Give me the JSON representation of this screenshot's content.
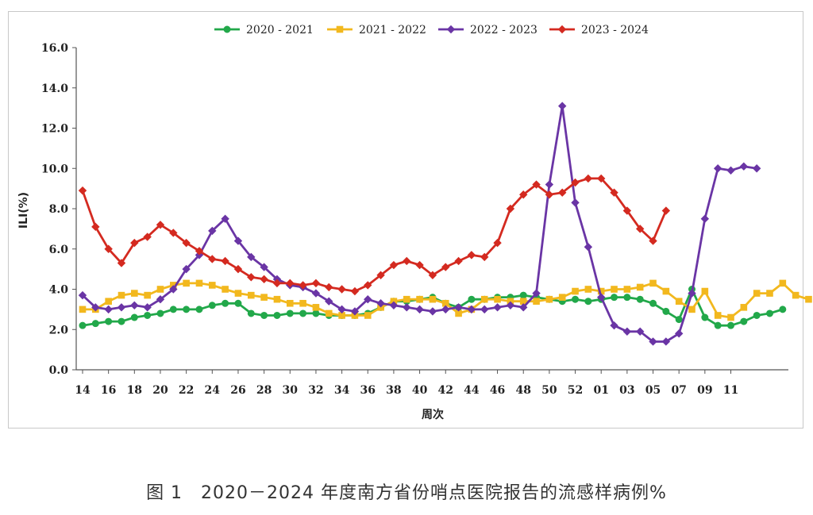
{
  "caption": "图 1　2020－2024 年度南方省份哨点医院报告的流感样病例%",
  "chart_data": {
    "type": "line",
    "title": "",
    "xlabel": "周次",
    "ylabel": "ILI(%)",
    "ylim": [
      0,
      16
    ],
    "yticks": [
      "0.0",
      "2.0",
      "4.0",
      "6.0",
      "8.0",
      "10.0",
      "12.0",
      "14.0",
      "16.0"
    ],
    "x_tick_labels": [
      "14",
      "16",
      "18",
      "20",
      "22",
      "24",
      "26",
      "28",
      "30",
      "32",
      "34",
      "36",
      "38",
      "40",
      "42",
      "44",
      "46",
      "48",
      "50",
      "52",
      "01",
      "03",
      "05",
      "07",
      "09",
      "11"
    ],
    "legend_position": "top",
    "series": [
      {
        "name": "2020 - 2021",
        "color": "#22a84a",
        "marker": "circle",
        "values": [
          2.2,
          2.3,
          2.4,
          2.4,
          2.6,
          2.7,
          2.8,
          3.0,
          3.0,
          3.0,
          3.2,
          3.3,
          3.3,
          2.8,
          2.7,
          2.7,
          2.8,
          2.8,
          2.8,
          2.7,
          2.7,
          2.7,
          2.8,
          3.1,
          3.4,
          3.4,
          3.5,
          3.6,
          3.3,
          3.1,
          3.5,
          3.5,
          3.6,
          3.6,
          3.7,
          3.6,
          3.5,
          3.4,
          3.5,
          3.4,
          3.5,
          3.6,
          3.6,
          3.5,
          3.3,
          2.9,
          2.5,
          4.0,
          2.6,
          2.2,
          2.2,
          2.4,
          2.7,
          2.8,
          3.0
        ]
      },
      {
        "name": "2021 - 2022",
        "color": "#f2b81e",
        "marker": "square",
        "values": [
          3.0,
          3.0,
          3.4,
          3.7,
          3.8,
          3.7,
          4.0,
          4.2,
          4.3,
          4.3,
          4.2,
          4.0,
          3.8,
          3.7,
          3.6,
          3.5,
          3.3,
          3.3,
          3.1,
          2.8,
          2.7,
          2.7,
          2.7,
          3.1,
          3.4,
          3.5,
          3.5,
          3.5,
          3.3,
          2.8,
          3.0,
          3.5,
          3.5,
          3.4,
          3.4,
          3.4,
          3.5,
          3.6,
          3.9,
          4.0,
          3.9,
          4.0,
          4.0,
          4.1,
          4.3,
          3.9,
          3.4,
          3.0,
          3.9,
          2.7,
          2.6,
          3.1,
          3.8,
          3.8,
          4.3,
          3.7,
          3.5
        ]
      },
      {
        "name": "2022 - 2023",
        "color": "#6a35a5",
        "marker": "diamond",
        "values": [
          3.7,
          3.1,
          3.0,
          3.1,
          3.2,
          3.1,
          3.5,
          4.0,
          5.0,
          5.7,
          6.9,
          7.5,
          6.4,
          5.6,
          5.1,
          4.5,
          4.2,
          4.1,
          3.8,
          3.4,
          3.0,
          2.9,
          3.5,
          3.3,
          3.2,
          3.1,
          3.0,
          2.9,
          3.0,
          3.1,
          3.0,
          3.0,
          3.1,
          3.2,
          3.1,
          3.8,
          9.2,
          13.1,
          8.3,
          6.1,
          3.6,
          2.2,
          1.9,
          1.9,
          1.4,
          1.4,
          1.8,
          3.8,
          7.5,
          10.0,
          9.9,
          10.1,
          10.0
        ]
      },
      {
        "name": "2023 - 2024",
        "color": "#d42a20",
        "marker": "diamond",
        "values": [
          8.9,
          7.1,
          6.0,
          5.3,
          6.3,
          6.6,
          7.2,
          6.8,
          6.3,
          5.9,
          5.5,
          5.4,
          5.0,
          4.6,
          4.5,
          4.3,
          4.3,
          4.2,
          4.3,
          4.1,
          4.0,
          3.9,
          4.2,
          4.7,
          5.2,
          5.4,
          5.2,
          4.7,
          5.1,
          5.4,
          5.7,
          5.6,
          6.3,
          8.0,
          8.7,
          9.2,
          8.7,
          8.8,
          9.3,
          9.5,
          9.5,
          8.8,
          7.9,
          7.0,
          6.4,
          7.9
        ]
      }
    ]
  }
}
